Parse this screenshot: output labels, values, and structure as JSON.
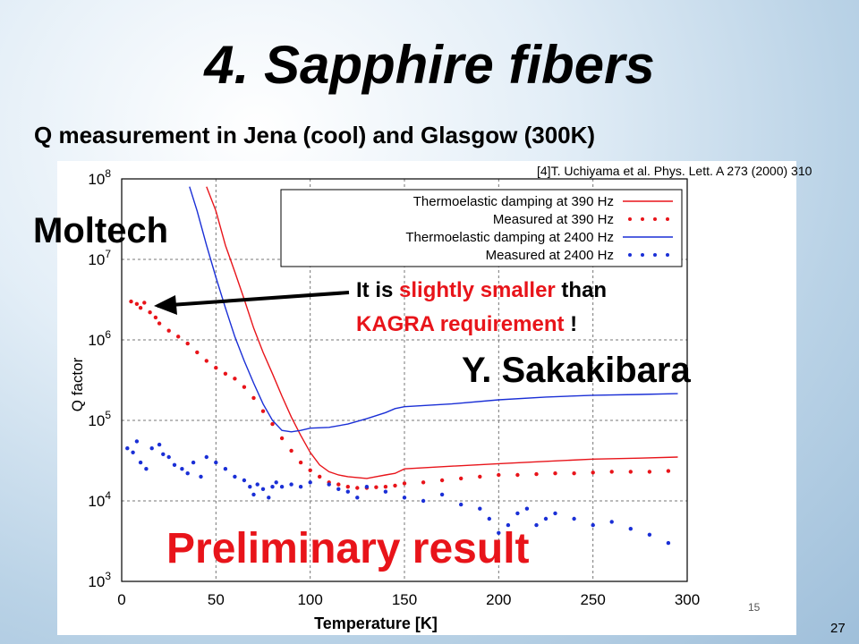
{
  "slide": {
    "title": "4. Sapphire fibers",
    "subtitle": "Q measurement in Jena (cool) and Glasgow (300K)",
    "moltech": "Moltech",
    "note_part1": "It is ",
    "note_red1": "slightly smaller",
    "note_part2": " than",
    "note_red2": "KAGRA requirement",
    "note_part3": " !",
    "author": "Y. Sakakibara",
    "preliminary": "Preliminary result",
    "page_number": "27",
    "inner_page_number": "15",
    "reference": "[4]T. Uchiyama et al. Phys. Lett. A 273 (2000) 310",
    "colors": {
      "red": "#e8141a",
      "blue": "#1a2fd6"
    }
  },
  "chart_data": {
    "type": "scatter",
    "xlabel": "Temperature [K]",
    "ylabel": "Q factor",
    "xlim": [
      0,
      300
    ],
    "ylim": [
      1000,
      100000000
    ],
    "yscale": "log",
    "grid": true,
    "legend_position": "top-right",
    "x_ticks": [
      "0",
      "50",
      "100",
      "150",
      "200",
      "250",
      "300"
    ],
    "y_ticks": [
      {
        "base": "10",
        "exp": "3"
      },
      {
        "base": "10",
        "exp": "4"
      },
      {
        "base": "10",
        "exp": "5"
      },
      {
        "base": "10",
        "exp": "6"
      },
      {
        "base": "10",
        "exp": "7"
      },
      {
        "base": "10",
        "exp": "8"
      }
    ],
    "series": [
      {
        "name": "Thermoelastic damping at  390 Hz",
        "kind": "line",
        "color": "#e8141a",
        "x": [
          45,
          50,
          55,
          60,
          65,
          70,
          75,
          80,
          85,
          90,
          95,
          100,
          105,
          110,
          115,
          120,
          125,
          130,
          135,
          140,
          145,
          150,
          175,
          200,
          225,
          250,
          275,
          295
        ],
        "y": [
          80000000,
          40000000,
          15000000,
          7000000,
          3200000,
          1400000,
          700000,
          380000,
          200000,
          110000,
          65000,
          40000,
          28000,
          23000,
          21000,
          20000,
          19500,
          19000,
          20000,
          21000,
          22000,
          25000,
          27000,
          29000,
          31000,
          33000,
          34000,
          35000
        ]
      },
      {
        "name": "Measured at  390 Hz",
        "kind": "points",
        "color": "#e8141a",
        "x": [
          5,
          8,
          10,
          12,
          15,
          18,
          20,
          25,
          30,
          35,
          40,
          45,
          50,
          55,
          60,
          65,
          70,
          75,
          80,
          85,
          90,
          95,
          100,
          105,
          110,
          115,
          120,
          125,
          130,
          135,
          140,
          145,
          150,
          160,
          170,
          180,
          190,
          200,
          210,
          220,
          230,
          240,
          250,
          260,
          270,
          280,
          290
        ],
        "y": [
          3000000,
          2800000,
          2500000,
          2900000,
          2200000,
          1900000,
          1600000,
          1300000,
          1100000,
          900000,
          700000,
          550000,
          450000,
          380000,
          330000,
          260000,
          190000,
          130000,
          90000,
          60000,
          42000,
          30000,
          24000,
          20000,
          17000,
          16000,
          15000,
          14500,
          14500,
          14800,
          15000,
          15500,
          16500,
          17000,
          18000,
          19000,
          20000,
          21000,
          21000,
          21500,
          22000,
          22000,
          22500,
          23000,
          23000,
          23000,
          23500
        ]
      },
      {
        "name": "Thermoelastic damping at 2400 Hz",
        "kind": "line",
        "color": "#1a2fd6",
        "x": [
          36,
          40,
          45,
          50,
          55,
          60,
          65,
          70,
          75,
          80,
          85,
          90,
          95,
          100,
          110,
          120,
          130,
          140,
          145,
          150,
          175,
          200,
          225,
          250,
          275,
          295
        ],
        "y": [
          80000000,
          40000000,
          15000000,
          6000000,
          2500000,
          1100000,
          550000,
          290000,
          160000,
          100000,
          75000,
          72000,
          75000,
          80000,
          82000,
          90000,
          105000,
          125000,
          140000,
          148000,
          160000,
          180000,
          195000,
          205000,
          210000,
          215000
        ]
      },
      {
        "name": "Measured at 2400 Hz",
        "kind": "points",
        "color": "#1a2fd6",
        "x": [
          3,
          6,
          8,
          10,
          13,
          16,
          20,
          22,
          25,
          28,
          32,
          35,
          38,
          42,
          45,
          50,
          55,
          60,
          65,
          68,
          70,
          72,
          75,
          78,
          80,
          82,
          85,
          90,
          95,
          100,
          110,
          115,
          120,
          125,
          130,
          140,
          150,
          160,
          170,
          180,
          190,
          195,
          200,
          205,
          210,
          215,
          220,
          225,
          230,
          240,
          250,
          260,
          270,
          280,
          290
        ],
        "y": [
          45000,
          40000,
          55000,
          30000,
          25000,
          45000,
          50000,
          38000,
          35000,
          28000,
          25000,
          22000,
          30000,
          20000,
          35000,
          30000,
          25000,
          20000,
          18000,
          15000,
          12000,
          16000,
          14000,
          11000,
          15000,
          17000,
          15000,
          16000,
          15000,
          17000,
          16000,
          14000,
          13000,
          11000,
          15000,
          13000,
          11000,
          10000,
          12000,
          9000,
          8000,
          6000,
          4000,
          5000,
          7000,
          8000,
          5000,
          6000,
          7000,
          6000,
          5000,
          5500,
          4500,
          3800,
          3000
        ]
      }
    ]
  }
}
